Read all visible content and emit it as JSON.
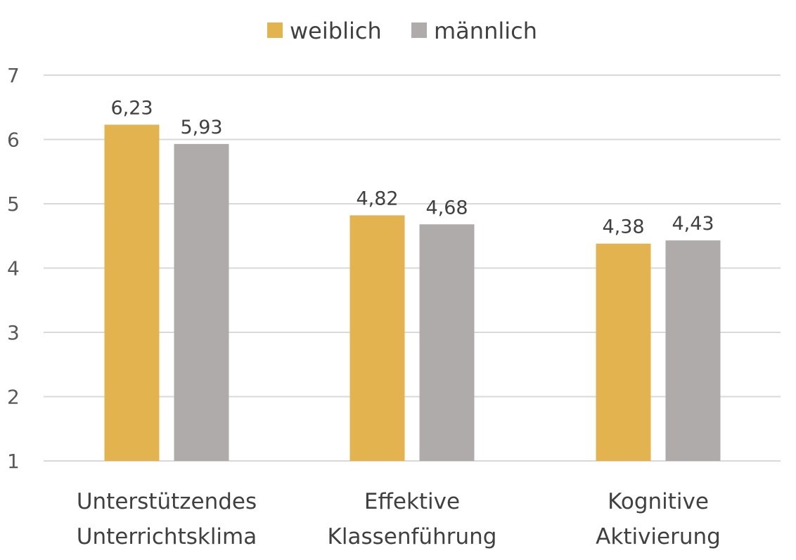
{
  "chart_data": {
    "type": "bar",
    "categories": [
      [
        "Unterstützendes",
        "Unterrichtsklima"
      ],
      [
        "Effektive",
        "Klassenführung"
      ],
      [
        "Kognitive",
        "Aktivierung"
      ]
    ],
    "series": [
      {
        "name": "weiblich",
        "color": "#E3B350",
        "values": [
          6.23,
          4.82,
          4.38
        ],
        "labels": [
          "6,23",
          "4,82",
          "4,38"
        ]
      },
      {
        "name": "männlich",
        "color": "#AFABAB",
        "values": [
          5.93,
          4.68,
          4.43
        ],
        "labels": [
          "5,93",
          "4,68",
          "4,43"
        ]
      }
    ],
    "yticks": [
      "1",
      "2",
      "3",
      "4",
      "5",
      "6",
      "7"
    ],
    "ylim": [
      1,
      7
    ],
    "grid": true,
    "legend_position": "top-center",
    "gridline_color": "#D9D9D9"
  }
}
